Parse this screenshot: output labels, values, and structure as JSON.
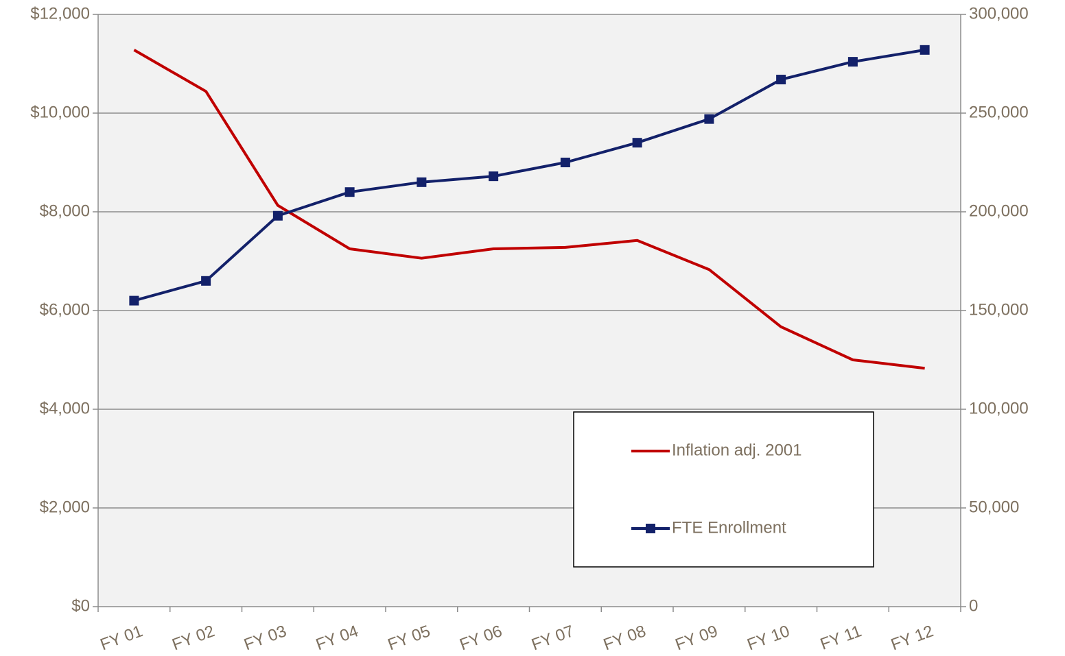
{
  "chart_data": {
    "type": "line",
    "categories": [
      "FY 01",
      "FY 02",
      "FY 03",
      "FY 04",
      "FY 05",
      "FY 06",
      "FY 07",
      "FY 08",
      "FY 09",
      "FY 10",
      "FY 11",
      "FY 12"
    ],
    "series": [
      {
        "name": "Inflation adj. 2001",
        "color": "#c00000",
        "axis": "y",
        "marker": false,
        "values": [
          11280,
          10440,
          8130,
          7250,
          7060,
          7250,
          7280,
          7420,
          6830,
          5670,
          5000,
          4830
        ]
      },
      {
        "name": "FTE Enrollment",
        "color": "#13216a",
        "axis": "y2",
        "marker": true,
        "values": [
          155000,
          165000,
          198000,
          210000,
          215000,
          218000,
          225000,
          235000,
          247000,
          267000,
          276000,
          282000
        ]
      }
    ],
    "ylim": [
      0,
      12000
    ],
    "yticks": [
      {
        "value": 0,
        "label": "$0"
      },
      {
        "value": 2000,
        "label": "$2,000"
      },
      {
        "value": 4000,
        "label": "$4,000"
      },
      {
        "value": 6000,
        "label": "$6,000"
      },
      {
        "value": 8000,
        "label": "$8,000"
      },
      {
        "value": 10000,
        "label": "$10,000"
      },
      {
        "value": 12000,
        "label": "$12,000"
      }
    ],
    "y2lim": [
      0,
      300000
    ],
    "y2ticks": [
      0,
      {
        "value": 50000,
        "label": "50,000"
      },
      {
        "value": 100000,
        "label": "100,000"
      },
      {
        "value": 150000,
        "label": "150,000"
      },
      {
        "value": 200000,
        "label": "200,000"
      },
      {
        "value": 250000,
        "label": "250,000"
      },
      {
        "value": 300000,
        "label": "300,000"
      }
    ],
    "grid": true,
    "legend": "lower right"
  }
}
